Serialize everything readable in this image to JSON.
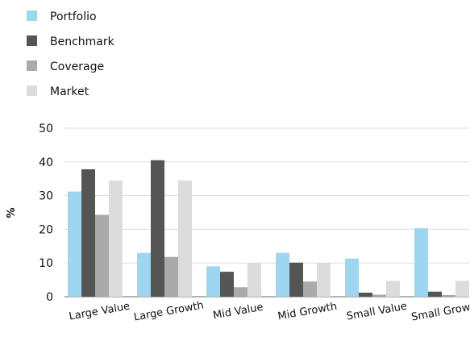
{
  "chart_data": {
    "type": "bar",
    "title": "",
    "xlabel": "",
    "ylabel": "%",
    "ylim": [
      0,
      50
    ],
    "yticks": [
      0,
      10,
      20,
      30,
      40,
      50
    ],
    "grid": true,
    "legend_position": "top-left",
    "categories": [
      "Large Value",
      "Large Growth",
      "Mid Value",
      "Mid Growth",
      "Small Value",
      "Small Growth"
    ],
    "series": [
      {
        "name": "Portfolio",
        "color": "#9dd6ee",
        "values": [
          31.2,
          13.0,
          9.0,
          13.0,
          11.3,
          20.3
        ]
      },
      {
        "name": "Benchmark",
        "color": "#555555",
        "values": [
          37.8,
          40.5,
          7.4,
          10.1,
          1.2,
          1.5
        ]
      },
      {
        "name": "Coverage",
        "color": "#aaaaaa",
        "values": [
          24.3,
          11.8,
          2.8,
          4.5,
          0.6,
          0.5
        ]
      },
      {
        "name": "Market",
        "color": "#dcdcdc",
        "values": [
          34.5,
          34.5,
          10.0,
          10.0,
          4.7,
          4.7
        ]
      }
    ]
  }
}
